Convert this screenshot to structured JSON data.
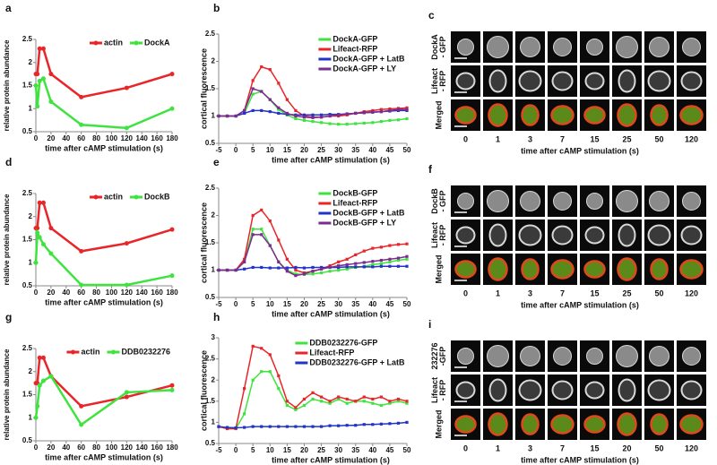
{
  "chart_data": [
    {
      "type": "line",
      "label": "a",
      "xlabel": "time after cAMP stimulation (s)",
      "ylabel": "relative protein abundance",
      "marker": "circle",
      "legend": "upper right",
      "legend_layout": "horizontal",
      "x": [
        0,
        2,
        5,
        10,
        20,
        60,
        120,
        180
      ],
      "xlim": [
        0,
        180
      ],
      "xticks": [
        0,
        20,
        40,
        60,
        80,
        100,
        120,
        140,
        160,
        180
      ],
      "ylim": [
        0.5,
        2.5
      ],
      "yticks": [
        0.5,
        1,
        1.5,
        2,
        2.5
      ],
      "series": [
        {
          "name": "actin",
          "color": "#e8262a",
          "values": [
            1.75,
            1.75,
            2.3,
            2.3,
            1.75,
            1.25,
            1.45,
            1.75
          ]
        },
        {
          "name": "DockA",
          "color": "#3fe33f",
          "values": [
            1.5,
            1.05,
            1.6,
            1.65,
            1.15,
            0.65,
            0.58,
            1.0
          ]
        }
      ]
    },
    {
      "type": "line",
      "label": "b",
      "xlabel": "time after cAMP stimulation (s)",
      "ylabel": "cortical fluorescence",
      "marker": "square",
      "legend": "upper right",
      "legend_layout": "vertical",
      "x": [
        -5,
        -2.5,
        0,
        2.5,
        5,
        7.5,
        10,
        12.5,
        15,
        17.5,
        20,
        22.5,
        25,
        27.5,
        30,
        32.5,
        35,
        37.5,
        40,
        42.5,
        45,
        47.5,
        50
      ],
      "xlim": [
        -5,
        50
      ],
      "xticks": [
        -5,
        0,
        5,
        10,
        15,
        20,
        25,
        30,
        35,
        40,
        45,
        50
      ],
      "ylim": [
        0.5,
        2.5
      ],
      "yticks": [
        0.5,
        1,
        1.5,
        2,
        2.5
      ],
      "series": [
        {
          "name": "DockA-GFP",
          "color": "#3fe33f",
          "values": [
            1,
            1,
            1,
            1.05,
            1.4,
            1.45,
            1.3,
            1.12,
            1.02,
            0.95,
            0.92,
            0.9,
            0.88,
            0.86,
            0.85,
            0.85,
            0.86,
            0.87,
            0.88,
            0.9,
            0.92,
            0.93,
            0.95
          ]
        },
        {
          "name": "Lifeact-RFP",
          "color": "#e8262a",
          "values": [
            1,
            1,
            1,
            1.1,
            1.65,
            1.9,
            1.85,
            1.6,
            1.3,
            1.1,
            1.0,
            0.98,
            0.98,
            1.0,
            1.0,
            1.02,
            1.05,
            1.08,
            1.1,
            1.12,
            1.13,
            1.14,
            1.15
          ]
        },
        {
          "name": "DockA-GFP + LatB",
          "color": "#2233c8",
          "values": [
            1,
            1,
            1,
            1.05,
            1.1,
            1.1,
            1.08,
            1.05,
            1.03,
            1.02,
            1.02,
            1.02,
            1.02,
            1.03,
            1.03,
            1.04,
            1.05,
            1.06,
            1.07,
            1.08,
            1.09,
            1.1,
            1.1
          ]
        },
        {
          "name": "DockA-GFP + LY",
          "color": "#7a2d8e",
          "values": [
            1,
            1,
            1,
            1.1,
            1.5,
            1.45,
            1.3,
            1.15,
            1.05,
            1.0,
            0.98,
            0.97,
            0.98,
            1.0,
            1.02,
            1.04,
            1.05,
            1.06,
            1.07,
            1.08,
            1.1,
            1.12,
            1.12
          ]
        }
      ]
    },
    {
      "type": "line",
      "label": "d",
      "xlabel": "time after cAMP stimulation (s)",
      "ylabel": "relative protein abundance",
      "marker": "circle",
      "legend": "upper right",
      "legend_layout": "horizontal",
      "x": [
        0,
        2,
        5,
        10,
        20,
        60,
        120,
        180
      ],
      "xlim": [
        0,
        180
      ],
      "xticks": [
        0,
        20,
        40,
        60,
        80,
        100,
        120,
        140,
        160,
        180
      ],
      "ylim": [
        0.5,
        2.5
      ],
      "yticks": [
        0.5,
        1,
        1.5,
        2,
        2.5
      ],
      "series": [
        {
          "name": "actin",
          "color": "#e8262a",
          "values": [
            1.75,
            1.75,
            2.3,
            2.3,
            1.75,
            1.25,
            1.42,
            1.72
          ]
        },
        {
          "name": "DockB",
          "color": "#3fe33f",
          "values": [
            1.0,
            1.65,
            1.55,
            1.4,
            1.2,
            0.52,
            0.52,
            0.72
          ]
        }
      ]
    },
    {
      "type": "line",
      "label": "e",
      "xlabel": "time after cAMP stimulation (s)",
      "ylabel": "cortical fluorescence",
      "marker": "square",
      "legend": "upper right",
      "legend_layout": "vertical",
      "x": [
        -5,
        -2.5,
        0,
        2.5,
        5,
        7.5,
        10,
        12.5,
        15,
        17.5,
        20,
        22.5,
        25,
        27.5,
        30,
        32.5,
        35,
        37.5,
        40,
        42.5,
        45,
        47.5,
        50
      ],
      "xlim": [
        -5,
        50
      ],
      "xticks": [
        -5,
        0,
        5,
        10,
        15,
        20,
        25,
        30,
        35,
        40,
        45,
        50
      ],
      "ylim": [
        0.5,
        2.5
      ],
      "yticks": [
        0.5,
        1,
        1.5,
        2,
        2.5
      ],
      "series": [
        {
          "name": "DockB-GFP",
          "color": "#3fe33f",
          "values": [
            1,
            1,
            1,
            1.15,
            1.75,
            1.75,
            1.45,
            1.15,
            1.0,
            0.93,
            0.92,
            0.93,
            0.95,
            0.98,
            1.0,
            1.02,
            1.05,
            1.07,
            1.1,
            1.12,
            1.15,
            1.18,
            1.2
          ]
        },
        {
          "name": "Lifeact-RFP",
          "color": "#e8262a",
          "values": [
            1,
            1,
            1,
            1.2,
            2.0,
            2.1,
            1.9,
            1.55,
            1.2,
            1.0,
            0.95,
            0.98,
            1.02,
            1.08,
            1.15,
            1.2,
            1.28,
            1.35,
            1.4,
            1.42,
            1.45,
            1.47,
            1.48
          ]
        },
        {
          "name": "DockB-GFP + LatB",
          "color": "#2233c8",
          "values": [
            1,
            1,
            1,
            1.02,
            1.05,
            1.05,
            1.04,
            1.04,
            1.04,
            1.05,
            1.04,
            1.05,
            1.05,
            1.05,
            1.05,
            1.06,
            1.06,
            1.06,
            1.06,
            1.07,
            1.07,
            1.07,
            1.07
          ]
        },
        {
          "name": "DockB-GFP + LY",
          "color": "#7a2d8e",
          "values": [
            1,
            1,
            1,
            1.15,
            1.65,
            1.65,
            1.45,
            1.15,
            0.98,
            0.9,
            0.93,
            0.98,
            1.02,
            1.05,
            1.08,
            1.1,
            1.12,
            1.14,
            1.16,
            1.18,
            1.2,
            1.22,
            1.25
          ]
        }
      ]
    },
    {
      "type": "line",
      "label": "g",
      "xlabel": "time after cAMP stimulation (s)",
      "ylabel": "relative protein abundance",
      "marker": "circle",
      "legend": "upper right",
      "legend_layout": "horizontal",
      "x": [
        0,
        2,
        5,
        10,
        20,
        60,
        120,
        180
      ],
      "xlim": [
        0,
        180
      ],
      "xticks": [
        0,
        20,
        40,
        60,
        80,
        100,
        120,
        140,
        160,
        180
      ],
      "ylim": [
        0.5,
        2.5
      ],
      "yticks": [
        0.5,
        1,
        1.5,
        2,
        2.5
      ],
      "series": [
        {
          "name": "actin",
          "color": "#e8262a",
          "values": [
            1.75,
            1.75,
            2.3,
            2.3,
            1.9,
            1.25,
            1.45,
            1.7
          ]
        },
        {
          "name": "DDB0232276",
          "color": "#3fe33f",
          "values": [
            1.0,
            1.25,
            1.7,
            1.8,
            1.9,
            0.85,
            1.55,
            1.6
          ]
        }
      ]
    },
    {
      "type": "line",
      "label": "h",
      "xlabel": "time after cAMP stimulation (s)",
      "ylabel": "cortical fluorescence",
      "marker": "square",
      "legend": "upper right",
      "legend_layout": "vertical",
      "x": [
        -5,
        -2.5,
        0,
        2.5,
        5,
        7.5,
        10,
        12.5,
        15,
        17.5,
        20,
        22.5,
        25,
        27.5,
        30,
        32.5,
        35,
        37.5,
        40,
        42.5,
        45,
        47.5,
        50
      ],
      "xlim": [
        -5,
        50
      ],
      "xticks": [
        -5,
        0,
        5,
        10,
        15,
        20,
        25,
        30,
        35,
        40,
        45,
        50
      ],
      "ylim": [
        0.5,
        3
      ],
      "yticks": [
        0.5,
        1,
        1.5,
        2,
        2.5,
        3
      ],
      "series": [
        {
          "name": "DDB0232276-GFP",
          "color": "#3fe33f",
          "values": [
            0.9,
            0.85,
            0.85,
            1.2,
            2.0,
            2.2,
            2.2,
            1.8,
            1.4,
            1.3,
            1.4,
            1.55,
            1.5,
            1.45,
            1.55,
            1.45,
            1.5,
            1.5,
            1.45,
            1.4,
            1.45,
            1.5,
            1.45
          ]
        },
        {
          "name": "Lifeact-RFP",
          "color": "#e8262a",
          "values": [
            0.9,
            0.85,
            0.85,
            1.8,
            2.8,
            2.75,
            2.6,
            2.1,
            1.5,
            1.35,
            1.55,
            1.7,
            1.6,
            1.5,
            1.6,
            1.55,
            1.5,
            1.6,
            1.55,
            1.6,
            1.5,
            1.55,
            1.5
          ]
        },
        {
          "name": "DDB0232276-GFP + LatB",
          "color": "#2233c8",
          "values": [
            0.9,
            0.88,
            0.87,
            0.88,
            0.9,
            0.9,
            0.9,
            0.9,
            0.9,
            0.9,
            0.9,
            0.9,
            0.9,
            0.92,
            0.92,
            0.93,
            0.93,
            0.95,
            0.95,
            0.96,
            0.97,
            0.98,
            1.0
          ]
        }
      ]
    }
  ],
  "image_panels": [
    {
      "label": "c",
      "rows": [
        [
          "DockA",
          "- GFP"
        ],
        [
          "Lifeact",
          "- RFP"
        ],
        [
          "Merged"
        ]
      ],
      "columns": [
        0,
        1,
        3,
        7,
        15,
        25,
        50,
        120
      ],
      "xlabel": "time after cAMP stimulation (s)"
    },
    {
      "label": "f",
      "rows": [
        [
          "DockB",
          "- GFP"
        ],
        [
          "Lifeact",
          "- RFP"
        ],
        [
          "Merged"
        ]
      ],
      "columns": [
        0,
        1,
        3,
        7,
        15,
        25,
        50,
        120
      ],
      "xlabel": "time after cAMP stimulation (s)"
    },
    {
      "label": "i",
      "rows": [
        [
          "232276",
          "-GFP"
        ],
        [
          "Lifeact",
          "- RFP"
        ],
        [
          "Merged"
        ]
      ],
      "columns": [
        0,
        1,
        3,
        7,
        15,
        20,
        50,
        120
      ],
      "xlabel": "time after cAMP stimulation (s)"
    }
  ]
}
